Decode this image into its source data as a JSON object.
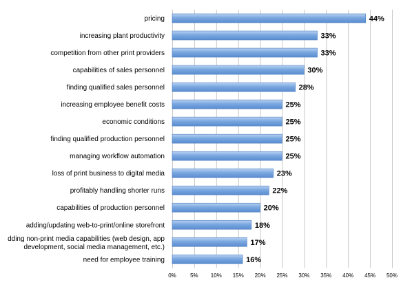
{
  "chart_data": {
    "type": "bar",
    "orientation": "horizontal",
    "categories": [
      "pricing",
      "increasing plant productivity",
      "competition from other print providers",
      "capabilities of sales personnel",
      "finding qualified sales personnel",
      "increasing employee benefit costs",
      "economic conditions",
      "finding qualified production personnel",
      "managing workflow automation",
      "loss of print business to digital media",
      "profitably handling shorter runs",
      "capabilities of production personnel",
      "adding/updating web-to-print/online storefront",
      [
        "dding non-print media capabilities (web design, app",
        "development, social media management, etc.)"
      ],
      "need for employee training"
    ],
    "values": [
      44,
      33,
      33,
      30,
      28,
      25,
      25,
      25,
      25,
      23,
      22,
      20,
      18,
      17,
      16
    ],
    "value_labels": [
      "44%",
      "33%",
      "33%",
      "30%",
      "28%",
      "25%",
      "25%",
      "25%",
      "25%",
      "23%",
      "22%",
      "20%",
      "18%",
      "17%",
      "16%"
    ],
    "x_ticks": [
      "0%",
      "5%",
      "10%",
      "15%",
      "20%",
      "25%",
      "30%",
      "35%",
      "40%",
      "45%",
      "50%"
    ],
    "xlim": [
      0,
      50
    ],
    "grid": true,
    "bar_color": "#6f9fdc",
    "bar_edge_color": "#4f7fbf",
    "grid_color": "#c8c8c8"
  }
}
